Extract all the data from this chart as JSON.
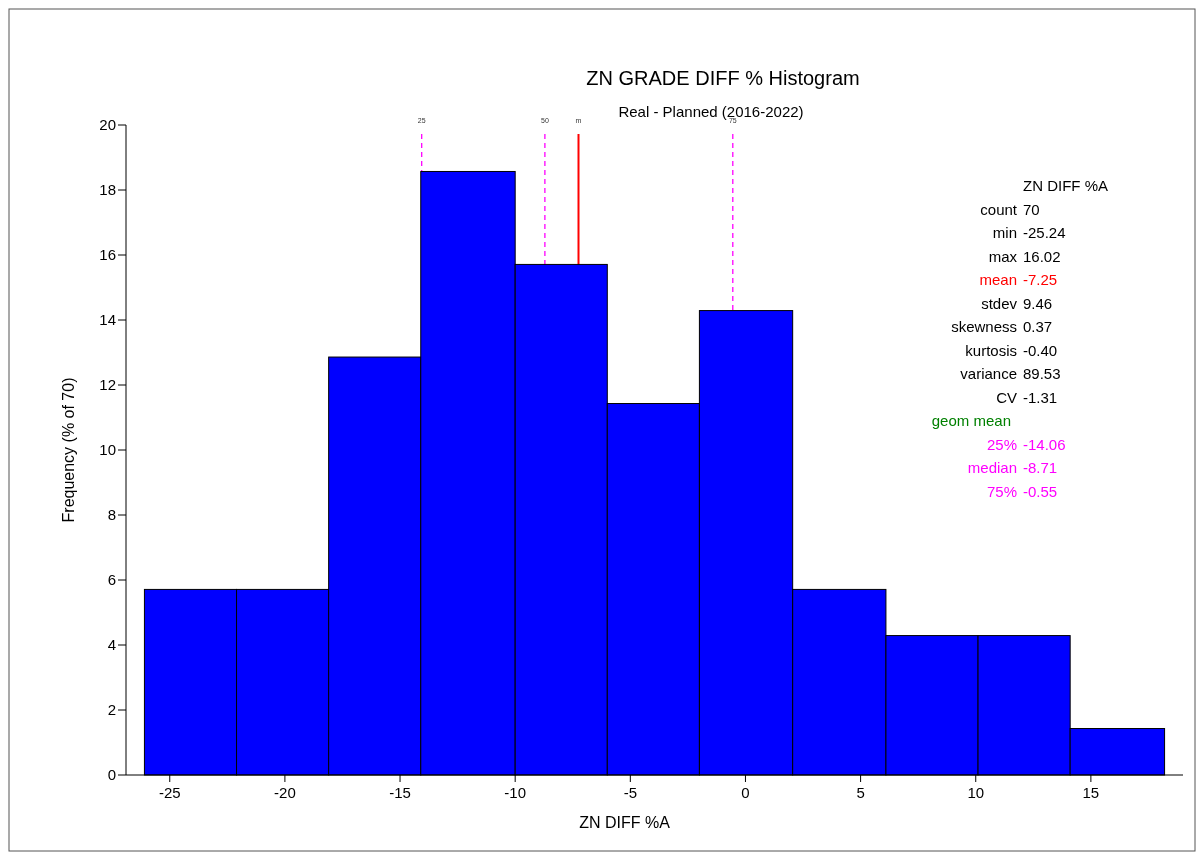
{
  "chart_data": {
    "type": "histogram",
    "title": "ZN GRADE DIFF % Histogram",
    "subtitle": "Real - Planned (2016-2022)",
    "xlabel": "ZN DIFF %A",
    "ylabel": "Frequency (% of 70)",
    "bins": [
      -26.1,
      -22.1,
      -18.1,
      -14.1,
      -10.0,
      -6.0,
      -2.0,
      2.05,
      6.1,
      10.1,
      14.1,
      18.2
    ],
    "values": [
      5.71,
      5.71,
      12.86,
      18.57,
      15.71,
      11.43,
      14.29,
      5.71,
      4.29,
      4.29,
      1.43
    ],
    "color": "#0000ff",
    "xlim": [
      -26.9,
      19.0
    ],
    "xticks": [
      -25,
      -20,
      -15,
      -10,
      -5,
      0,
      5,
      10,
      15
    ],
    "ylim": [
      0,
      20
    ],
    "yticks": [
      0,
      2,
      4,
      6,
      8,
      10,
      12,
      14,
      16,
      18,
      20
    ],
    "grid": false,
    "ref_lines": [
      {
        "axis": "x",
        "value": -14.06,
        "color": "#ff00ff",
        "line_style": "dashed"
      },
      {
        "axis": "x",
        "value": -8.71,
        "color": "#ff00ff",
        "line_style": "dashed"
      },
      {
        "axis": "x",
        "value": -7.25,
        "color": "#ff0000",
        "line_style": "solid"
      },
      {
        "axis": "x",
        "value": -0.55,
        "color": "#ff00ff",
        "line_style": "dashed"
      }
    ],
    "annotations": [
      "25",
      "50",
      "m",
      "75",
      "ZN DIFF %A",
      "count 70",
      "min -25.24",
      "max 16.02",
      "mean -7.25",
      "stdev 9.46",
      "skewness 0.37",
      "kurtosis -0.40",
      "variance 89.53",
      "CV -1.31",
      "geom mean",
      "25% -14.06",
      "median -8.71",
      "75% -0.55"
    ]
  }
}
